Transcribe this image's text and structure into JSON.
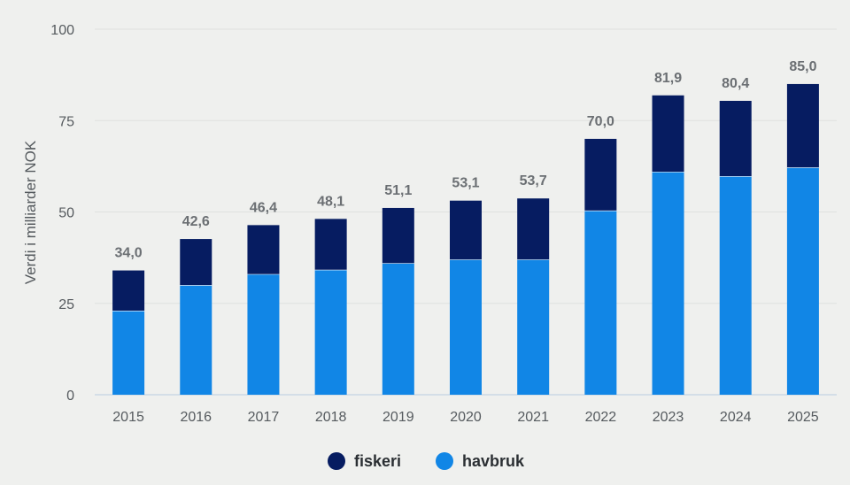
{
  "chart_data": {
    "type": "bar",
    "stacked": true,
    "title": "",
    "xlabel": "",
    "ylabel": "Verdi i milliarder NOK",
    "ylim": [
      0,
      100
    ],
    "yticks": [
      0,
      25,
      50,
      75,
      100
    ],
    "categories": [
      "2015",
      "2016",
      "2017",
      "2018",
      "2019",
      "2020",
      "2021",
      "2022",
      "2023",
      "2024",
      "2025"
    ],
    "series": [
      {
        "name": "havbruk",
        "color": "#1186e6",
        "values": [
          23.0,
          30.0,
          33.0,
          34.2,
          36.0,
          37.0,
          37.0,
          50.4,
          61.0,
          59.8,
          62.2
        ]
      },
      {
        "name": "fiskeri",
        "color": "#061c61",
        "values": [
          11.0,
          12.6,
          13.4,
          13.9,
          15.1,
          16.1,
          16.7,
          19.6,
          20.9,
          20.6,
          22.8
        ]
      }
    ],
    "totals": [
      "34,0",
      "42,6",
      "46,4",
      "48,1",
      "51,1",
      "53,1",
      "53,7",
      "70,0",
      "81,9",
      "80,4",
      "85,0"
    ],
    "legend": {
      "position": "bottom",
      "items": [
        {
          "label": "fiskeri",
          "color": "#061c61"
        },
        {
          "label": "havbruk",
          "color": "#1186e6"
        }
      ]
    }
  }
}
